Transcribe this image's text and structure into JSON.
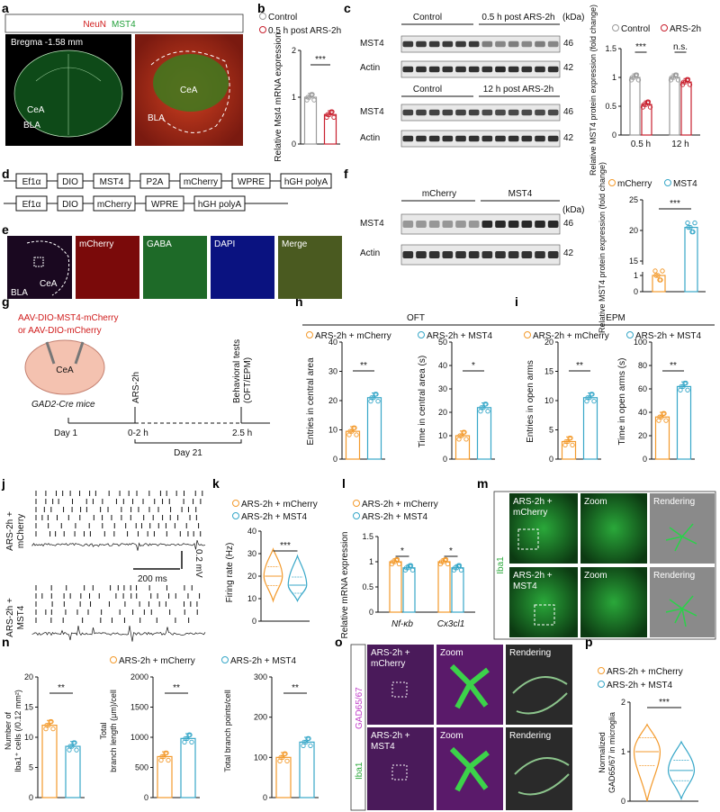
{
  "colors": {
    "orange": "#f39a2c",
    "cyan": "#37a7c8",
    "red": "#c8202e",
    "grey": "#9a9a9a",
    "green": "#3cc24a",
    "magenta": "#c03cc8",
    "blue": "#2f44e0"
  },
  "panel_labels": [
    "a",
    "b",
    "c",
    "d",
    "e",
    "f",
    "g",
    "h",
    "i",
    "j",
    "k",
    "l",
    "m",
    "n",
    "o",
    "p"
  ],
  "a": {
    "legend_neun": "NeuN",
    "legend_mst4": "MST4",
    "bregma": "Bregma -1.58 mm",
    "cea": "CeA",
    "bla": "BLA"
  },
  "b": {
    "legend": [
      "Control",
      "0.5 h post ARS-2h"
    ],
    "ylabel": "Relative Mst4 mRNA expression",
    "sig": "***"
  },
  "c": {
    "group1_ctrl": "Control",
    "group1_ars": "0.5 h post ARS-2h",
    "group2_ctrl": "Control",
    "group2_ars": "12 h post ARS-2h",
    "kda": "(kDa)",
    "mst4": "MST4",
    "actin": "Actin",
    "mw46": "46",
    "mw42": "42",
    "legend": [
      "Control",
      "ARS-2h"
    ],
    "ylabel": "Relative MST4 protein expression (fold change)",
    "xticks": [
      "0.5 h",
      "12 h"
    ],
    "sig1": "***",
    "sig2": "n.s."
  },
  "d": {
    "row1": [
      "Ef1α",
      "DIO",
      "MST4",
      "P2A",
      "mCherry",
      "WPRE",
      "hGH polyA"
    ],
    "row2": [
      "Ef1α",
      "DIO",
      "mCherry",
      "WPRE",
      "hGH polyA"
    ]
  },
  "e": {
    "labels": [
      "mCherry",
      "GABA",
      "DAPI",
      "Merge"
    ],
    "cea": "CeA",
    "bla": "BLA"
  },
  "f": {
    "ctrl": "mCherry",
    "mst": "MST4",
    "kda": "(kDa)",
    "mst4": "MST4",
    "actin": "Actin",
    "mw46": "46",
    "mw42": "42",
    "legend": [
      "mCherry",
      "MST4"
    ],
    "ylabel": "Relative MST4 protein expression (fold change)",
    "sig": "***"
  },
  "g": {
    "virus1": "AAV-DIO-MST4-mCherry",
    "virus2": "or AAV-DIO-mCherry",
    "cea": "CeA",
    "mice": "GAD2-Cre mice",
    "ars": "ARS-2h",
    "behav1": "Behavioral tests",
    "behav2": "(OFT/EPM)",
    "day1": "Day 1",
    "t1": "0-2 h",
    "t2": "2.5 h",
    "day21": "Day 21"
  },
  "h": {
    "title": "OFT",
    "legend": [
      "ARS-2h + mCherry",
      "ARS-2h + MST4"
    ],
    "ylabel1": "Entries in central area",
    "ylabel2": "Time in central area (s)",
    "sig1": "**",
    "sig2": "*"
  },
  "i": {
    "title": "EPM",
    "legend": [
      "ARS-2h + mCherry",
      "ARS-2h + MST4"
    ],
    "ylabel1": "Entries in open arms",
    "ylabel2": "Time in open arms (s)",
    "sig1": "**",
    "sig2": "**"
  },
  "j": {
    "row1": "ARS-2h + mCherry",
    "row2": "ARS-2h + MST4",
    "scale_t": "200 ms",
    "scale_v": "0.2 mV"
  },
  "k": {
    "legend": [
      "ARS-2h + mCherry",
      "ARS-2h + MST4"
    ],
    "ylabel": "Firing rate (Hz)",
    "sig": "***"
  },
  "l": {
    "legend": [
      "ARS-2h + mCherry",
      "ARS-2h + MST4"
    ],
    "ylabel": "Relative mRNA expression",
    "xticks": [
      "Nf-κb",
      "Cx3cl1"
    ],
    "sig1": "*",
    "sig2": "*"
  },
  "m": {
    "row1": "ARS-2h + mCherry",
    "row2": "ARS-2h + MST4",
    "zoom": "Zoom",
    "rendering": "Rendering",
    "side": "Iba1"
  },
  "n": {
    "legend": [
      "ARS-2h + mCherry",
      "ARS-2h + MST4"
    ],
    "ylabel1": "Number of Iba1+ cells (/0.12 mm²)",
    "ylabel2": "Total branch length (μm)/cell",
    "ylabel3": "Total branch points/cell",
    "sig": "**"
  },
  "o": {
    "row1": "ARS-2h + mCherry",
    "row2": "ARS-2h + MST4",
    "zoom": "Zoom",
    "rendering": "Rendering",
    "side1": "Iba1",
    "side2": "GAD65/67"
  },
  "p": {
    "legend": [
      "ARS-2h + mCherry",
      "ARS-2h + MST4"
    ],
    "ylabel": "Normalized GAD65/67 in microglia",
    "sig": "***"
  },
  "chart_data": [
    {
      "id": "b",
      "type": "bar",
      "categories": [
        "Control",
        "0.5 h post ARS-2h"
      ],
      "values": [
        1.0,
        0.63
      ],
      "ylim": [
        0,
        2
      ],
      "yticks": [
        0,
        1,
        2
      ]
    },
    {
      "id": "c",
      "type": "bar",
      "categories": [
        "0.5 h",
        "12 h"
      ],
      "series": [
        {
          "name": "Control",
          "values": [
            1.0,
            1.0
          ]
        },
        {
          "name": "ARS-2h",
          "values": [
            0.53,
            0.92
          ]
        }
      ],
      "ylim": [
        0,
        1.5
      ],
      "yticks": [
        0,
        0.5,
        1.0,
        1.5
      ]
    },
    {
      "id": "f",
      "type": "bar",
      "categories": [
        "mCherry",
        "MST4"
      ],
      "values": [
        1.0,
        20.5
      ],
      "yticks": [
        0,
        1,
        15,
        20,
        25
      ]
    },
    {
      "id": "h1",
      "type": "bar",
      "categories": [
        "ARS-2h + mCherry",
        "ARS-2h + MST4"
      ],
      "values": [
        9.5,
        21
      ],
      "ylim": [
        0,
        40
      ],
      "yticks": [
        0,
        10,
        20,
        30,
        40
      ]
    },
    {
      "id": "h2",
      "type": "bar",
      "categories": [
        "ARS-2h + mCherry",
        "ARS-2h + MST4"
      ],
      "values": [
        10,
        22
      ],
      "ylim": [
        0,
        50
      ],
      "yticks": [
        0,
        10,
        20,
        30,
        40,
        50
      ]
    },
    {
      "id": "i1",
      "type": "bar",
      "categories": [
        "ARS-2h + mCherry",
        "ARS-2h + MST4"
      ],
      "values": [
        3,
        10.5
      ],
      "ylim": [
        0,
        20
      ],
      "yticks": [
        0,
        5,
        10,
        15,
        20
      ]
    },
    {
      "id": "i2",
      "type": "bar",
      "categories": [
        "ARS-2h + mCherry",
        "ARS-2h + MST4"
      ],
      "values": [
        36,
        62
      ],
      "ylim": [
        0,
        100
      ],
      "yticks": [
        0,
        20,
        40,
        60,
        80,
        100
      ]
    },
    {
      "id": "k",
      "type": "violin",
      "categories": [
        "ARS-2h + mCherry",
        "ARS-2h + MST4"
      ],
      "medians": [
        20,
        16
      ],
      "ranges": [
        [
          9,
          32
        ],
        [
          9,
          29
        ]
      ],
      "ylim": [
        0,
        40
      ],
      "yticks": [
        0,
        10,
        20,
        30,
        40
      ]
    },
    {
      "id": "l",
      "type": "bar",
      "categories": [
        "Nf-κb",
        "Cx3cl1"
      ],
      "series": [
        {
          "name": "ARS-2h + mCherry",
          "values": [
            1.0,
            1.0
          ]
        },
        {
          "name": "ARS-2h + MST4",
          "values": [
            0.88,
            0.88
          ]
        }
      ],
      "ylim": [
        0,
        1.5
      ],
      "yticks": [
        0,
        0.5,
        1.0,
        1.5
      ]
    },
    {
      "id": "n1",
      "type": "bar",
      "categories": [
        "ARS-2h + mCherry",
        "ARS-2h + MST4"
      ],
      "values": [
        12,
        8.5
      ],
      "ylim": [
        0,
        20
      ],
      "yticks": [
        0,
        5,
        10,
        15,
        20
      ]
    },
    {
      "id": "n2",
      "type": "bar",
      "categories": [
        "ARS-2h + mCherry",
        "ARS-2h + MST4"
      ],
      "values": [
        680,
        980
      ],
      "ylim": [
        0,
        2000
      ],
      "yticks": [
        0,
        500,
        1000,
        1500,
        2000
      ]
    },
    {
      "id": "n3",
      "type": "bar",
      "categories": [
        "ARS-2h + mCherry",
        "ARS-2h + MST4"
      ],
      "values": [
        100,
        138
      ],
      "ylim": [
        0,
        300
      ],
      "yticks": [
        0,
        100,
        200,
        300
      ]
    },
    {
      "id": "p",
      "type": "violin",
      "categories": [
        "ARS-2h + mCherry",
        "ARS-2h + MST4"
      ],
      "medians": [
        1.0,
        0.62
      ],
      "ranges": [
        [
          0,
          1.55
        ],
        [
          0.05,
          1.2
        ]
      ],
      "ylim": [
        0,
        2
      ],
      "yticks": [
        0,
        1,
        2
      ]
    }
  ]
}
